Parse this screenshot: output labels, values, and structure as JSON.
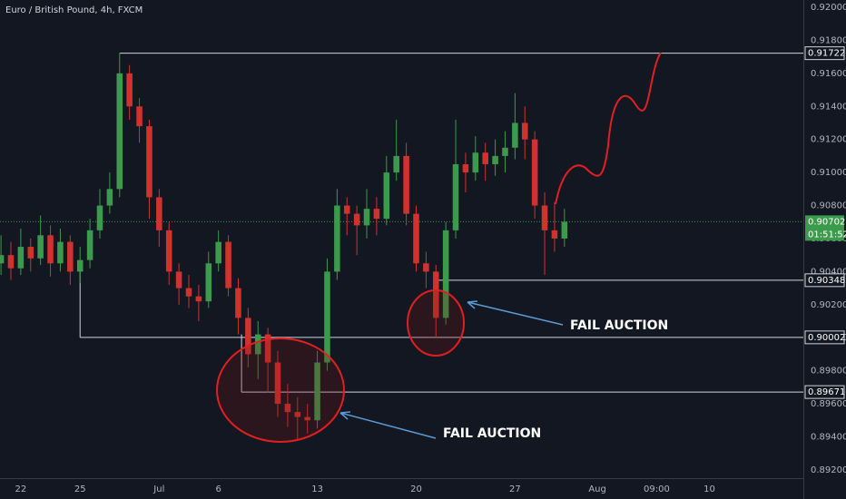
{
  "chart_data": {
    "type": "candlestick",
    "title": "Euro / British Pound, 4h, FXCM",
    "x": [
      -6,
      -3,
      0,
      3,
      6,
      9,
      12,
      15,
      18,
      21,
      24,
      27,
      30,
      33,
      36,
      39,
      42,
      45,
      48,
      51,
      54,
      57,
      60,
      63,
      66,
      69,
      72,
      75,
      78,
      81,
      84,
      87,
      90,
      93,
      96,
      99,
      102,
      105,
      108,
      111,
      114,
      117,
      120,
      123,
      126,
      129,
      132,
      135,
      138,
      141,
      144,
      147,
      150,
      153,
      156,
      159,
      162,
      165
    ],
    "open": [
      0.9045,
      0.905,
      0.9042,
      0.9055,
      0.9048,
      0.9062,
      0.9045,
      0.9058,
      0.904,
      0.9047,
      0.9065,
      0.908,
      0.909,
      0.916,
      0.914,
      0.9128,
      0.9085,
      0.9065,
      0.904,
      0.903,
      0.9025,
      0.9022,
      0.9045,
      0.9058,
      0.903,
      0.9012,
      0.899,
      0.9002,
      0.8985,
      0.896,
      0.8955,
      0.8952,
      0.895,
      0.8985,
      0.904,
      0.908,
      0.9075,
      0.9068,
      0.9078,
      0.9072,
      0.91,
      0.911,
      0.9075,
      0.9045,
      0.904,
      0.9012,
      0.9065,
      0.9105,
      0.91,
      0.9112,
      0.9105,
      0.911,
      0.9115,
      0.913,
      0.912,
      0.908,
      0.9065,
      0.906
    ],
    "high": [
      0.9062,
      0.9058,
      0.9066,
      0.906,
      0.9074,
      0.9068,
      0.9066,
      0.9062,
      0.9055,
      0.9072,
      0.909,
      0.91,
      0.91722,
      0.9165,
      0.9145,
      0.9132,
      0.909,
      0.907,
      0.9045,
      0.9038,
      0.9032,
      0.9052,
      0.9065,
      0.9062,
      0.9036,
      0.9018,
      0.901,
      0.9006,
      0.8992,
      0.8972,
      0.8964,
      0.896,
      0.8992,
      0.9048,
      0.909,
      0.9085,
      0.908,
      0.909,
      0.9085,
      0.911,
      0.9132,
      0.9118,
      0.908,
      0.9052,
      0.9044,
      0.907,
      0.9132,
      0.9112,
      0.9122,
      0.9118,
      0.912,
      0.9125,
      0.9148,
      0.914,
      0.9125,
      0.9088,
      0.9082,
      0.9078
    ],
    "low": [
      0.9038,
      0.9035,
      0.9038,
      0.904,
      0.9044,
      0.9037,
      0.904,
      0.9032,
      0.9033,
      0.9042,
      0.906,
      0.9075,
      0.9085,
      0.9132,
      0.9118,
      0.9072,
      0.9055,
      0.9032,
      0.902,
      0.9018,
      0.901,
      0.9018,
      0.904,
      0.9025,
      0.9002,
      0.8982,
      0.8975,
      0.8967,
      0.8952,
      0.8946,
      0.8938,
      0.8942,
      0.8945,
      0.898,
      0.9035,
      0.9062,
      0.905,
      0.906,
      0.9062,
      0.9068,
      0.9095,
      0.9068,
      0.904,
      0.903,
      0.90002,
      0.9008,
      0.906,
      0.9088,
      0.9095,
      0.9095,
      0.9098,
      0.91,
      0.9108,
      0.9108,
      0.9072,
      0.9038,
      0.9052,
      0.9055
    ],
    "close": [
      0.905,
      0.9042,
      0.9055,
      0.9048,
      0.9062,
      0.9045,
      0.9058,
      0.904,
      0.9047,
      0.9065,
      0.908,
      0.909,
      0.916,
      0.914,
      0.9128,
      0.9085,
      0.9065,
      0.904,
      0.903,
      0.9025,
      0.9022,
      0.9045,
      0.9058,
      0.903,
      0.9012,
      0.899,
      0.9002,
      0.8985,
      0.896,
      0.8955,
      0.8952,
      0.895,
      0.8985,
      0.904,
      0.908,
      0.9075,
      0.9068,
      0.9078,
      0.9072,
      0.91,
      0.911,
      0.9075,
      0.9045,
      0.904,
      0.9012,
      0.9065,
      0.9105,
      0.91,
      0.9112,
      0.9105,
      0.911,
      0.9115,
      0.913,
      0.912,
      0.908,
      0.9065,
      0.906,
      0.90702
    ],
    "up_color": "#3c9a4c",
    "down_color": "#d0332e",
    "xlim": [
      -6.3,
      237.5
    ],
    "xticks": [
      {
        "value": 0,
        "label": "22"
      },
      {
        "value": 18,
        "label": "25"
      },
      {
        "value": 42,
        "label": "Jul"
      },
      {
        "value": 60,
        "label": "6"
      },
      {
        "value": 90,
        "label": "13"
      },
      {
        "value": 120,
        "label": "20"
      },
      {
        "value": 150,
        "label": "27"
      },
      {
        "value": 175,
        "label": "Aug"
      },
      {
        "value": 193,
        "label": "09:00"
      },
      {
        "value": 209,
        "label": "10"
      }
    ],
    "ylim": [
      0.8915,
      0.92044
    ],
    "yticks": [
      {
        "value": 0.892,
        "label": "0.89200"
      },
      {
        "value": 0.894,
        "label": "0.89400"
      },
      {
        "value": 0.896,
        "label": "0.89600"
      },
      {
        "value": 0.898,
        "label": "0.89800"
      },
      {
        "value": 0.9,
        "label": "0.90000"
      },
      {
        "value": 0.902,
        "label": "0.90200"
      },
      {
        "value": 0.904,
        "label": "0.90400"
      },
      {
        "value": 0.906,
        "label": "0.90600"
      },
      {
        "value": 0.908,
        "label": "0.90800"
      },
      {
        "value": 0.91,
        "label": "0.91000"
      },
      {
        "value": 0.912,
        "label": "0.91200"
      },
      {
        "value": 0.914,
        "label": "0.91400"
      },
      {
        "value": 0.916,
        "label": "0.91600"
      },
      {
        "value": 0.918,
        "label": "0.91800"
      },
      {
        "value": 0.92,
        "label": "0.92000"
      }
    ],
    "levels": [
      {
        "value": 0.91722,
        "from": 30
      },
      {
        "value": 0.90348,
        "from": 126
      },
      {
        "value": 0.90002,
        "from": 18
      },
      {
        "value": 0.89671,
        "from": 67
      }
    ],
    "last_price": 0.90702,
    "countdown": "01:51:52",
    "annotations": [
      "FAIL AUCTION",
      "FAIL AUCTION"
    ]
  }
}
